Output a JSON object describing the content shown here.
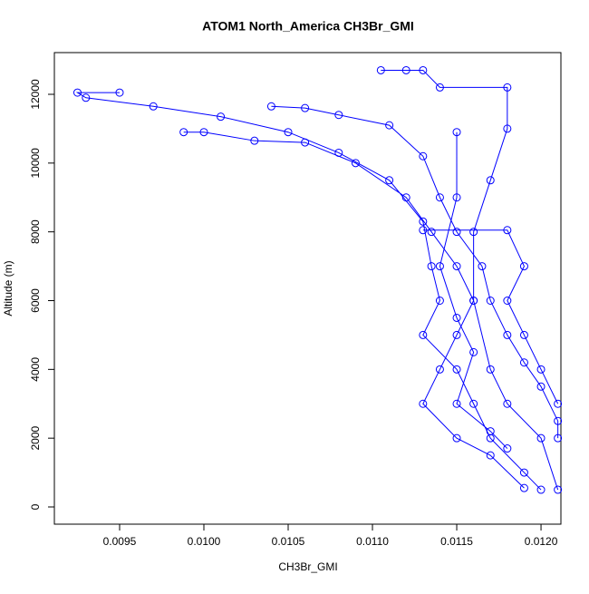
{
  "chart_data": {
    "type": "scatter",
    "title": "ATOM1 North_America CH3Br_GMI",
    "xlabel": "CH3Br_GMI",
    "ylabel": "Altitude (m)",
    "color": "#0000ff",
    "xlim": [
      0.009113,
      0.012118
    ],
    "ylim": [
      -501,
      13213
    ],
    "xticks": [
      0.0095,
      {
        "value": 0.01,
        "label": "0.0100"
      },
      0.0105,
      {
        "value": 0.011,
        "label": "0.0110"
      },
      0.0115,
      {
        "value": 0.012,
        "label": "0.0120"
      }
    ],
    "yticks": [
      0,
      2000,
      4000,
      6000,
      8000,
      10000,
      12000
    ],
    "x": [
      0.01105,
      0.0112,
      0.0113,
      0.0114,
      0.0118,
      0.0118,
      0.0117,
      0.0116,
      0.0116,
      0.0117,
      0.0118,
      0.012,
      0.0121,
      null,
      0.0095,
      0.00925,
      0.0093,
      0.0097,
      0.0101,
      0.0105,
      0.0108,
      0.0111,
      0.0113,
      0.01135,
      0.0114,
      0.0113,
      0.0115,
      0.0116,
      0.0117,
      0.0119,
      0.012,
      null,
      0.00988,
      0.01,
      0.0103,
      0.0106,
      0.0109,
      0.0112,
      0.01135,
      0.0115,
      0.0116,
      0.0115,
      0.0114,
      0.0113,
      0.0115,
      0.0117,
      0.0119,
      null,
      0.0104,
      0.0106,
      0.0108,
      0.0111,
      0.0113,
      0.0114,
      0.0115,
      0.01165,
      0.0117,
      0.0118,
      0.0119,
      0.012,
      0.0121,
      0.0121,
      null,
      0.0113,
      0.0118,
      0.0119,
      0.0118,
      0.0119,
      0.012,
      0.0121,
      null,
      0.0115,
      0.0115,
      0.0114,
      0.0115,
      0.0116,
      0.0115,
      0.0117,
      0.0118
    ],
    "values": [
      12700,
      12700,
      12700,
      12200,
      12200,
      11000,
      9500,
      8000,
      6000,
      4000,
      3000,
      2000,
      500,
      null,
      12050,
      12050,
      11900,
      11650,
      11350,
      10900,
      10300,
      9500,
      8300,
      7000,
      6000,
      5000,
      4000,
      3000,
      2000,
      1000,
      500,
      null,
      10900,
      10900,
      10650,
      10600,
      10000,
      9000,
      8000,
      7000,
      6000,
      5000,
      4000,
      3000,
      2000,
      1500,
      550,
      null,
      11650,
      11600,
      11400,
      11100,
      10200,
      9000,
      8000,
      7000,
      6000,
      5000,
      4200,
      3500,
      2500,
      2000,
      null,
      8050,
      8050,
      7000,
      6000,
      5000,
      4000,
      3000,
      null,
      10900,
      9000,
      7000,
      5500,
      4500,
      3000,
      2200,
      1700
    ]
  }
}
